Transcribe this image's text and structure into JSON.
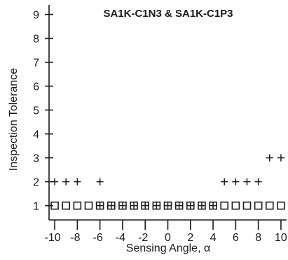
{
  "chart_data": {
    "type": "scatter",
    "title": "SA1K-C1N3 & SA1K-C1P3",
    "xlabel": "Sensing Angle, α",
    "ylabel": "Inspection Tolerance",
    "xlim": [
      -10.5,
      10.5
    ],
    "ylim": [
      0.4,
      9.4
    ],
    "x_ticks": [
      -10,
      -8,
      -6,
      -4,
      -2,
      0,
      2,
      4,
      6,
      8,
      10
    ],
    "x_tick_labels": [
      "-10",
      "-8",
      "-6",
      "-4",
      "-2",
      "0",
      "2",
      "4",
      "6",
      "8",
      "10"
    ],
    "y_ticks": [
      1,
      2,
      3,
      4,
      5,
      6,
      7,
      8,
      9
    ],
    "y_tick_labels": [
      "1",
      "2",
      "3",
      "4",
      "5",
      "6",
      "7",
      "8",
      "9"
    ],
    "grid": false,
    "series": [
      {
        "marker": "square",
        "points": [
          [
            -10,
            1
          ],
          [
            -9,
            1
          ],
          [
            -8,
            1
          ],
          [
            -7,
            1
          ],
          [
            -6,
            1
          ],
          [
            -5,
            1
          ],
          [
            -4,
            1
          ],
          [
            -3,
            1
          ],
          [
            -2,
            1
          ],
          [
            -1,
            1
          ],
          [
            0,
            1
          ],
          [
            1,
            1
          ],
          [
            2,
            1
          ],
          [
            3,
            1
          ],
          [
            4,
            1
          ],
          [
            5,
            1
          ],
          [
            6,
            1
          ],
          [
            7,
            1
          ],
          [
            8,
            1
          ],
          [
            9,
            1
          ],
          [
            10,
            1
          ]
        ]
      },
      {
        "marker": "plus",
        "points": [
          [
            -10,
            2
          ],
          [
            -9,
            2
          ],
          [
            -8,
            2
          ],
          [
            -6,
            2
          ],
          [
            5,
            2
          ],
          [
            6,
            2
          ],
          [
            7,
            2
          ],
          [
            8,
            2
          ],
          [
            9,
            3
          ],
          [
            10,
            3
          ],
          [
            -6,
            1
          ],
          [
            -5,
            1
          ],
          [
            -4,
            1
          ],
          [
            -3,
            1
          ],
          [
            -2,
            1
          ],
          [
            -1,
            1
          ],
          [
            0,
            1
          ],
          [
            1,
            1
          ],
          [
            2,
            1
          ],
          [
            3,
            1
          ],
          [
            4,
            1
          ]
        ]
      }
    ]
  }
}
